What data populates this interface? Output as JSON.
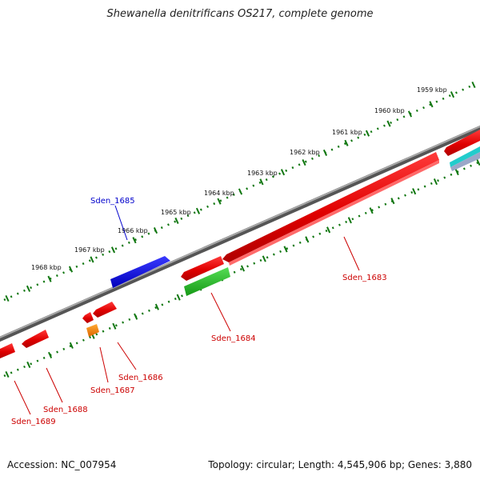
{
  "title": "Shewanella denitrificans OS217, complete genome",
  "footer": {
    "accession": "Accession: NC_007954",
    "summary": "Topology: circular; Length: 4,545,906 bp; Genes: 3,880"
  },
  "ruler": {
    "ticks": [
      "1959 kbp",
      "1960 kbp",
      "1961 kbp",
      "1962 kbp",
      "1963 kbp",
      "1964 kbp",
      "1965 kbp",
      "1966 kbp",
      "1967 kbp",
      "1968 kbp"
    ]
  },
  "genes": [
    {
      "name": "Sden_1683",
      "color": "#cc0000"
    },
    {
      "name": "Sden_1684",
      "color": "#cc0000"
    },
    {
      "name": "Sden_1685",
      "color": "#0000cc"
    },
    {
      "name": "Sden_1686",
      "color": "#cc0000"
    },
    {
      "name": "Sden_1687",
      "color": "#cc0000"
    },
    {
      "name": "Sden_1688",
      "color": "#cc0000"
    },
    {
      "name": "Sden_1689",
      "color": "#cc0000"
    }
  ],
  "colors": {
    "cds_forward": "#ee0000",
    "cds_reverse": "#ee0000",
    "blue_feature": "#1111dd",
    "green_feature": "#22bb22",
    "orange_feature": "#ff8800",
    "cyan_feature": "#22cccc",
    "backbone": "#808080",
    "tick": "#117711"
  }
}
